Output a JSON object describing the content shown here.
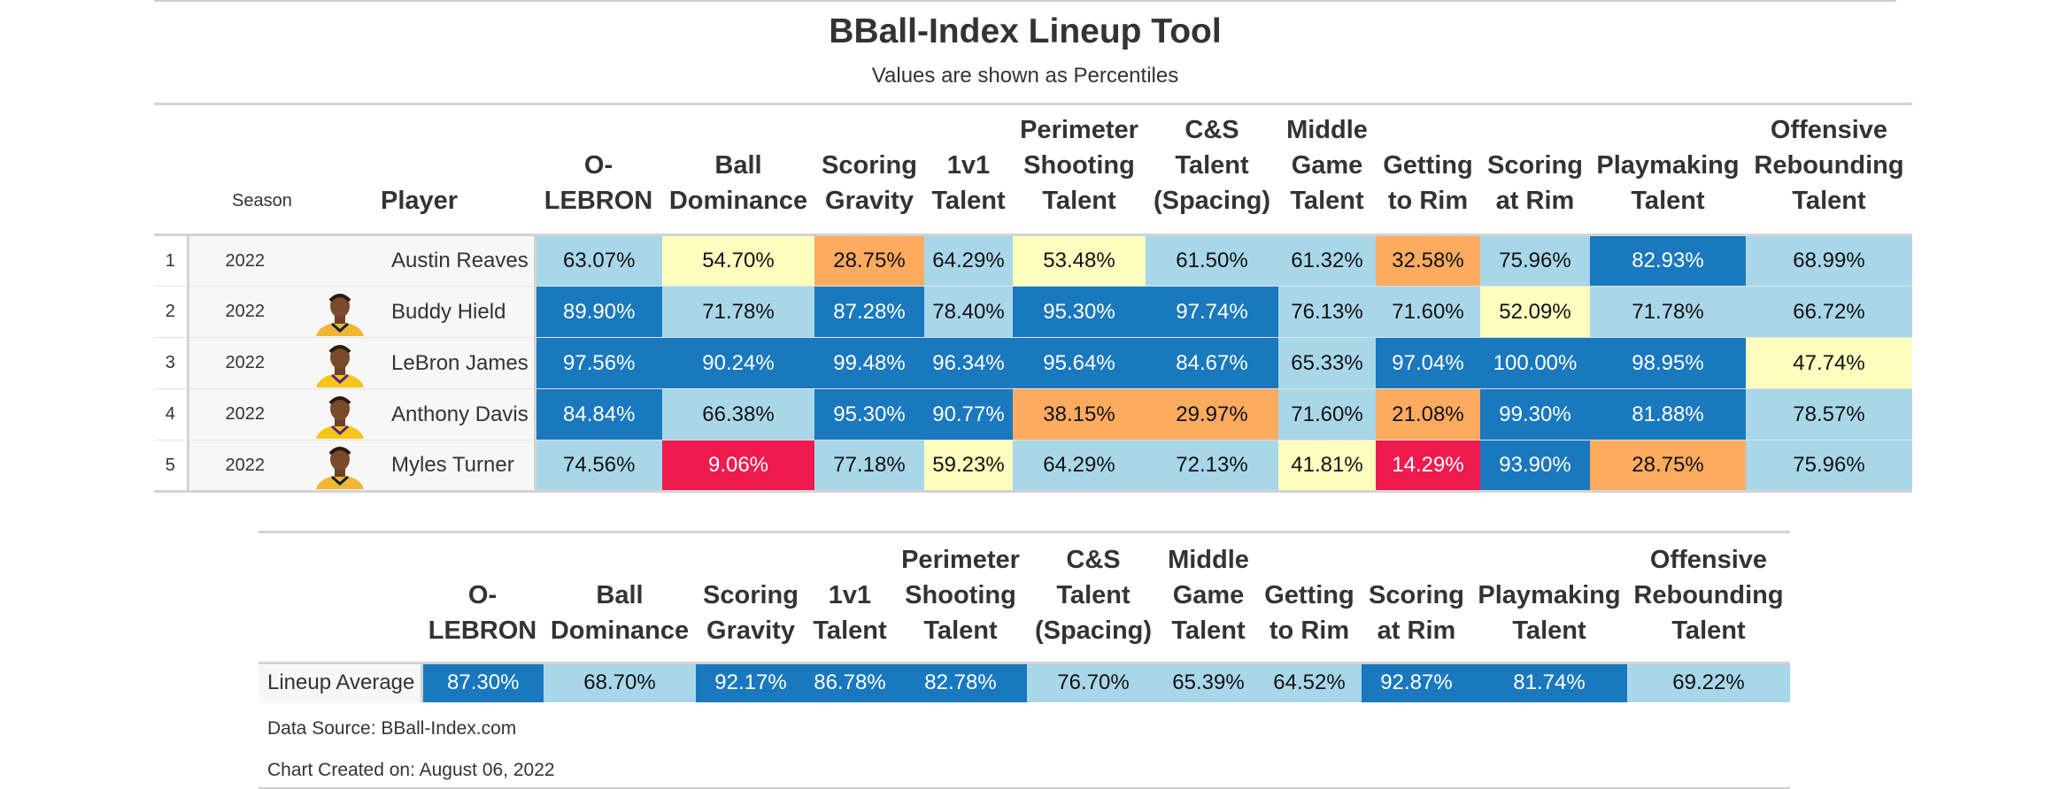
{
  "title": "BBall-Index Lineup Tool",
  "subtitle": "Values are shown as Percentiles",
  "colors": {
    "elite": "#1a78be",
    "good": "#a9d7ea",
    "average": "#fefebf",
    "below": "#fdab5f",
    "poor": "#ef1b4f"
  },
  "chart_data": [
    {
      "type": "table",
      "title": "BBall-Index Lineup Tool",
      "subtitle": "Values are shown as Percentiles",
      "columns": [
        "",
        "Season",
        "",
        "Player",
        "O-LEBRON",
        "Ball Dominance",
        "Scoring Gravity",
        "1v1 Talent",
        "Perimeter Shooting Talent",
        "C&S Talent (Spacing)",
        "Middle Game Talent",
        "Getting to Rim",
        "Scoring at Rim",
        "Playmaking Talent",
        "Offensive Rebounding Talent"
      ],
      "rows": [
        {
          "num": "1",
          "season": "2022",
          "player": "Austin Reaves",
          "headshot": "none",
          "values": [
            "63.07%",
            "54.70%",
            "28.75%",
            "64.29%",
            "53.48%",
            "61.50%",
            "61.32%",
            "32.58%",
            "75.96%",
            "82.93%",
            "68.99%"
          ],
          "tiers": [
            "good",
            "average",
            "below",
            "good",
            "average",
            "good",
            "good",
            "below",
            "good",
            "elite",
            "good"
          ]
        },
        {
          "num": "2",
          "season": "2022",
          "player": "Buddy Hield",
          "headshot": "player-headshot-pacers",
          "values": [
            "89.90%",
            "71.78%",
            "87.28%",
            "78.40%",
            "95.30%",
            "97.74%",
            "76.13%",
            "71.60%",
            "52.09%",
            "71.78%",
            "66.72%"
          ],
          "tiers": [
            "elite",
            "good",
            "elite",
            "good",
            "elite",
            "elite",
            "good",
            "good",
            "average",
            "good",
            "good"
          ]
        },
        {
          "num": "3",
          "season": "2022",
          "player": "LeBron James",
          "headshot": "player-headshot-lakers",
          "values": [
            "97.56%",
            "90.24%",
            "99.48%",
            "96.34%",
            "95.64%",
            "84.67%",
            "65.33%",
            "97.04%",
            "100.00%",
            "98.95%",
            "47.74%"
          ],
          "tiers": [
            "elite",
            "elite",
            "elite",
            "elite",
            "elite",
            "elite",
            "good",
            "elite",
            "elite",
            "elite",
            "average"
          ]
        },
        {
          "num": "4",
          "season": "2022",
          "player": "Anthony Davis",
          "headshot": "player-headshot-lakers",
          "values": [
            "84.84%",
            "66.38%",
            "95.30%",
            "90.77%",
            "38.15%",
            "29.97%",
            "71.60%",
            "21.08%",
            "99.30%",
            "81.88%",
            "78.57%"
          ],
          "tiers": [
            "elite",
            "good",
            "elite",
            "elite",
            "below",
            "below",
            "good",
            "below",
            "elite",
            "elite",
            "good"
          ]
        },
        {
          "num": "5",
          "season": "2022",
          "player": "Myles Turner",
          "headshot": "player-headshot-pacers",
          "values": [
            "74.56%",
            "9.06%",
            "77.18%",
            "59.23%",
            "64.29%",
            "72.13%",
            "41.81%",
            "14.29%",
            "93.90%",
            "28.75%",
            "75.96%"
          ],
          "tiers": [
            "good",
            "poor",
            "good",
            "average",
            "good",
            "good",
            "average",
            "poor",
            "elite",
            "below",
            "good"
          ]
        }
      ]
    },
    {
      "type": "table",
      "columns": [
        "",
        "O-LEBRON",
        "Ball Dominance",
        "Scoring Gravity",
        "1v1 Talent",
        "Perimeter Shooting Talent",
        "C&S Talent (Spacing)",
        "Middle Game Talent",
        "Getting to Rim",
        "Scoring at Rim",
        "Playmaking Talent",
        "Offensive Rebounding Talent"
      ],
      "rows": [
        {
          "label": "Lineup Average",
          "values": [
            "87.30%",
            "68.70%",
            "92.17%",
            "86.78%",
            "82.78%",
            "76.70%",
            "65.39%",
            "64.52%",
            "92.87%",
            "81.74%",
            "69.22%"
          ],
          "tiers": [
            "elite",
            "good",
            "elite",
            "elite",
            "elite",
            "good",
            "good",
            "good",
            "elite",
            "elite",
            "good"
          ]
        }
      ]
    }
  ],
  "headers": {
    "season": "Season",
    "player": "Player",
    "metric_lines": [
      [
        "O-",
        "LEBRON"
      ],
      [
        "Ball",
        "Dominance"
      ],
      [
        "Scoring",
        "Gravity"
      ],
      [
        "1v1",
        "Talent"
      ],
      [
        "Perimeter",
        "Shooting",
        "Talent"
      ],
      [
        "C&S",
        "Talent",
        "(Spacing)"
      ],
      [
        "Middle",
        "Game",
        "Talent"
      ],
      [
        "Getting",
        "to Rim"
      ],
      [
        "Scoring",
        "at Rim"
      ],
      [
        "Playmaking",
        "Talent"
      ],
      [
        "Offensive",
        "Rebounding",
        "Talent"
      ]
    ]
  },
  "footer": {
    "source": "Data Source: BBall-Index.com",
    "created": "Chart Created on: August 06, 2022"
  }
}
